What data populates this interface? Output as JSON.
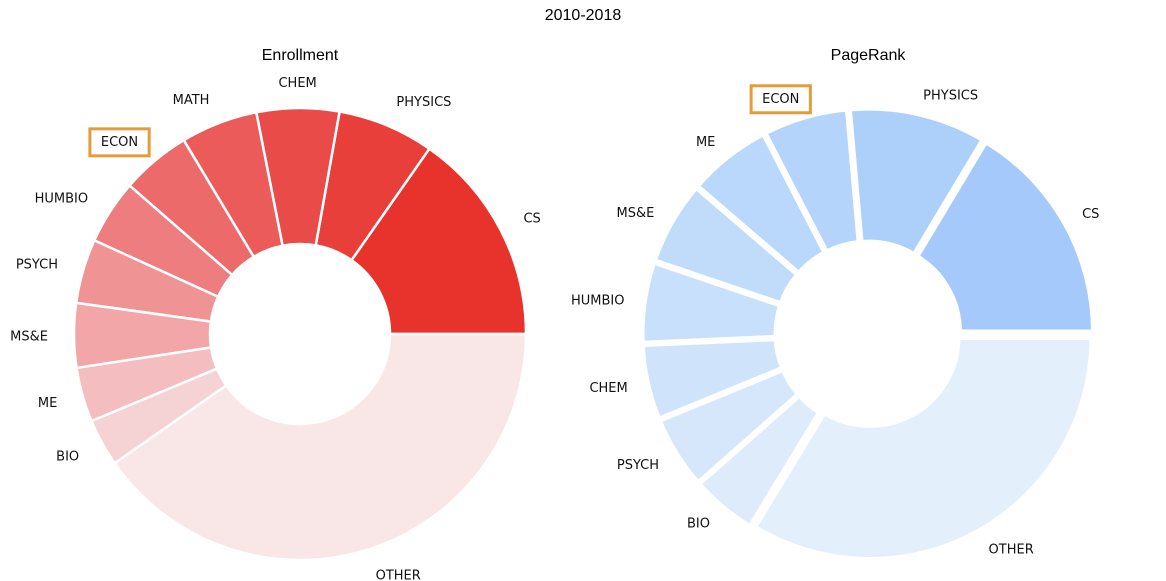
{
  "chart_data": {
    "title": "2010-2018",
    "charts": [
      {
        "type": "pie",
        "style": "donut",
        "title": "Enrollment",
        "highlighted_label": "ECON",
        "slices": [
          {
            "label": "CS",
            "value": 15.3,
            "color": "#e8332d"
          },
          {
            "label": "PHYSICS",
            "value": 6.9,
            "color": "#e83f3a"
          },
          {
            "label": "CHEM",
            "value": 5.9,
            "color": "#e94b48"
          },
          {
            "label": "MATH",
            "value": 5.5,
            "color": "#eb5b5a"
          },
          {
            "label": "ECON",
            "value": 5.0,
            "color": "#ec6a6a"
          },
          {
            "label": "HUMBIO",
            "value": 4.6,
            "color": "#ee7d7f"
          },
          {
            "label": "PSYCH",
            "value": 4.6,
            "color": "#f09395"
          },
          {
            "label": "MS&E",
            "value": 4.6,
            "color": "#f2a6a8"
          },
          {
            "label": "ME",
            "value": 3.9,
            "color": "#f4bdbf"
          },
          {
            "label": "BIO",
            "value": 3.4,
            "color": "#f5d2d3"
          },
          {
            "label": "OTHER",
            "value": 40.3,
            "color": "#f9e6e6"
          }
        ]
      },
      {
        "type": "pie",
        "style": "donut",
        "title": "PageRank",
        "highlighted_label": "ECON",
        "slices": [
          {
            "label": "CS",
            "value": 16.4,
            "color": "#a6c9fb"
          },
          {
            "label": "PHYSICS",
            "value": 10.0,
            "color": "#add0fb"
          },
          {
            "label": "ECON",
            "value": 6.2,
            "color": "#b5d4fb"
          },
          {
            "label": "ME",
            "value": 6.1,
            "color": "#bad8fb"
          },
          {
            "label": "MS&E",
            "value": 6.1,
            "color": "#c1dcfb"
          },
          {
            "label": "HUMBIO",
            "value": 5.9,
            "color": "#c8e0fb"
          },
          {
            "label": "CHEM",
            "value": 5.5,
            "color": "#cfe3fb"
          },
          {
            "label": "PSYCH",
            "value": 5.3,
            "color": "#d6e7fb"
          },
          {
            "label": "BIO",
            "value": 4.8,
            "color": "#ddebfb"
          },
          {
            "label": "OTHER",
            "value": 33.7,
            "color": "#e4effc"
          }
        ]
      }
    ]
  }
}
